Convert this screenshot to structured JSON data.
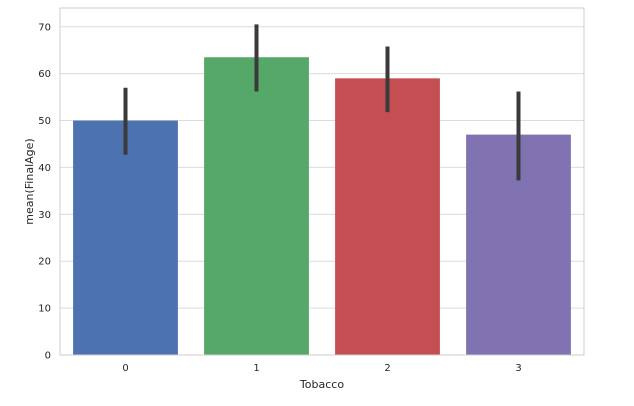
{
  "chart_data": {
    "type": "bar",
    "xlabel": "Tobacco",
    "ylabel": "mean(FinalAge)",
    "categories": [
      "0",
      "1",
      "2",
      "3"
    ],
    "values": [
      50.0,
      63.5,
      59.0,
      47.0
    ],
    "error_low": [
      42.7,
      56.2,
      51.8,
      37.2
    ],
    "error_high": [
      57.0,
      70.5,
      65.8,
      56.2
    ],
    "ylim": [
      0,
      74
    ],
    "yticks": [
      0,
      10,
      20,
      30,
      40,
      50,
      60,
      70
    ],
    "grid": true,
    "colors": [
      "#4c72b0",
      "#55a868",
      "#c44e52",
      "#8172b2"
    ],
    "error_color": "#3a3a3a"
  }
}
